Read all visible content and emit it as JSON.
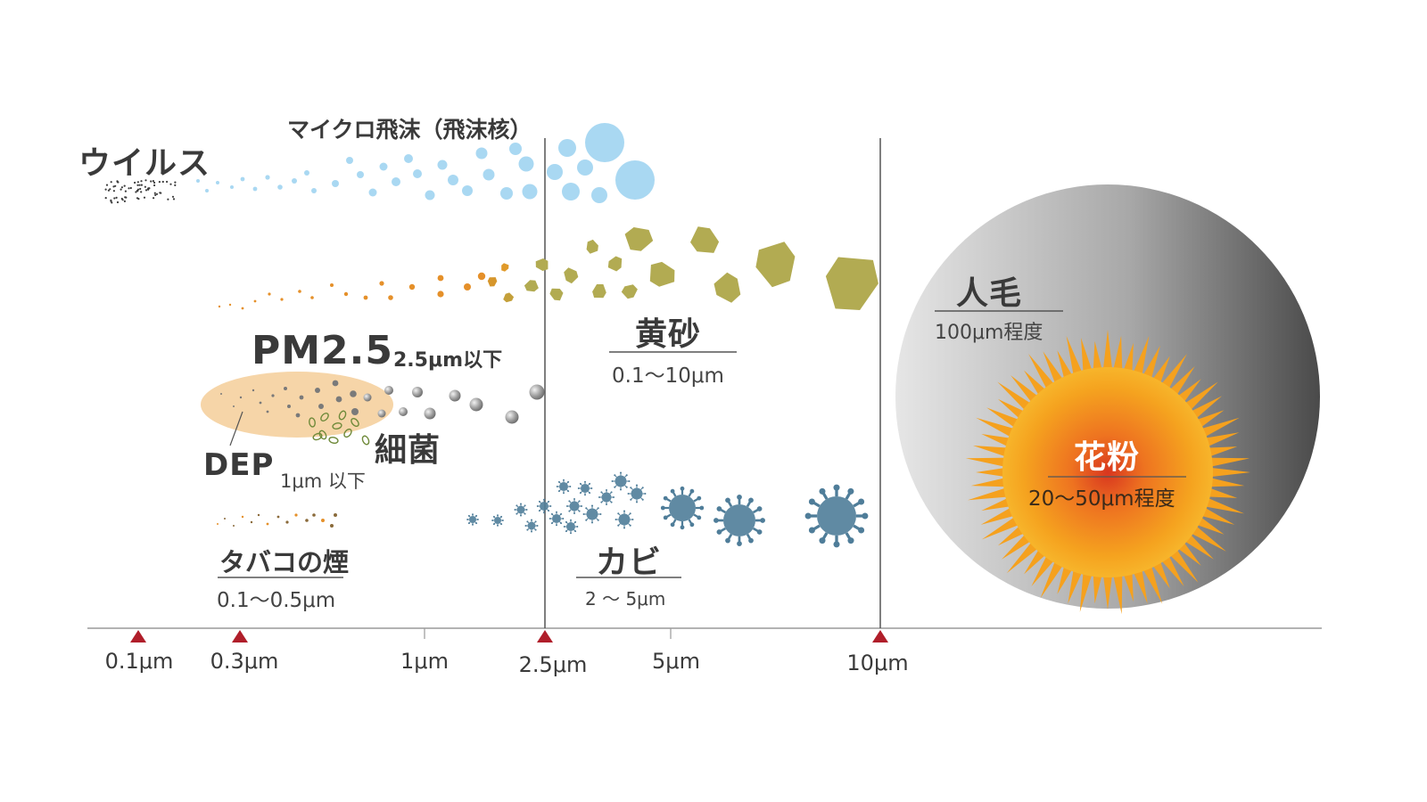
{
  "colors": {
    "virus": "#3c3c3c",
    "droplet": "#a9d8f2",
    "dust_orange": "#e5902a",
    "dust_olive": "#b2ab52",
    "pm25_ellipse": "#f6d5a8",
    "bacteria": "#6f8a3a",
    "metal_sphere": "#9a9a9a",
    "mold": "#4f7d99",
    "hair_light": "#e2e2e2",
    "hair_dark": "#4a4a4a",
    "pollen_center": "#d8361f",
    "pollen_outer": "#f4a21e",
    "marker": "#b01e2a",
    "axis": "#888888"
  },
  "labels": {
    "virus": "ウイルス",
    "micro_droplet": "マイクロ飛沫（飛沫核）",
    "pm25_title": "PM2.5",
    "pm25_range": "2.5μm以下",
    "dep_title": "DEP",
    "dep_range": "1μm 以下",
    "bacteria": "細菌",
    "tobacco": "タバコの煙",
    "tobacco_range": "0.1〜0.5μm",
    "yellow_sand": "黄砂",
    "yellow_sand_range": "0.1〜10μm",
    "mold": "カビ",
    "mold_range": "2 〜 5μm",
    "hair": "人毛",
    "hair_range": "100μm程度",
    "pollen": "花粉",
    "pollen_range": "20〜50μm程度"
  },
  "axis": {
    "ticks": [
      {
        "label": "0.1μm",
        "marker": true
      },
      {
        "label": "0.3μm",
        "marker": true
      },
      {
        "label": "1μm",
        "marker": false
      },
      {
        "label": "2.5μm",
        "marker": true
      },
      {
        "label": "5μm",
        "marker": false
      },
      {
        "label": "10μm",
        "marker": true
      }
    ]
  }
}
